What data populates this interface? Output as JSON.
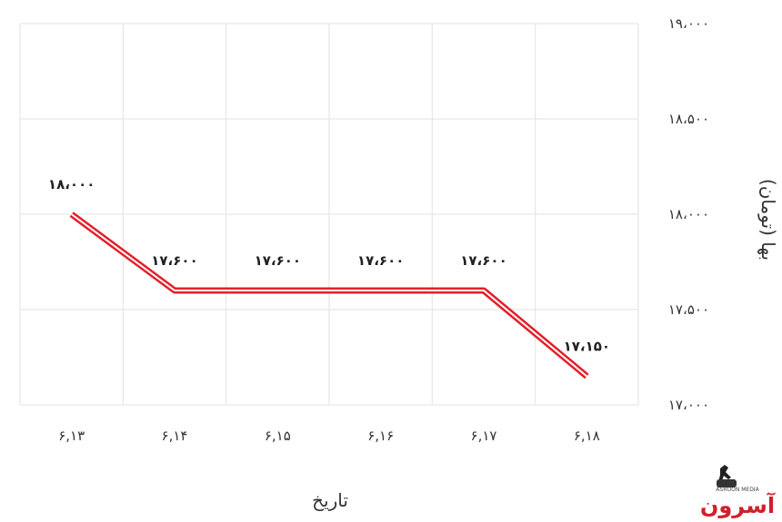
{
  "chart_data": {
    "type": "line",
    "categories": [
      "۶,۱۳",
      "۶,۱۴",
      "۶,۱۵",
      "۶,۱۶",
      "۶,۱۷",
      "۶,۱۸"
    ],
    "values": [
      18000,
      17600,
      17600,
      17600,
      17600,
      17150
    ],
    "data_labels": [
      "۱۸،۰۰۰",
      "۱۷،۶۰۰",
      "۱۷،۶۰۰",
      "۱۷،۶۰۰",
      "۱۷،۶۰۰",
      "۱۷،۱۵۰"
    ],
    "xlabel": "تاریخ",
    "ylabel": "بها (تومان)",
    "ylim": [
      17000,
      19000
    ],
    "yticks": [
      17000,
      17500,
      18000,
      18500,
      19000
    ],
    "ytick_labels": [
      "۱۷،۰۰۰",
      "۱۷،۵۰۰",
      "۱۸،۰۰۰",
      "۱۸،۵۰۰",
      "۱۹،۰۰۰"
    ],
    "y_axis_position": "right",
    "grid": true,
    "line_color": "#e3202a",
    "line_style": "double"
  },
  "watermark": {
    "text": "آسرون",
    "subtext": "ASROON MEDIA",
    "color": "#d0202a"
  }
}
